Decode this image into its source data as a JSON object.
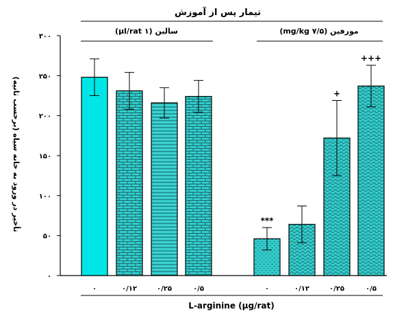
{
  "chart_data": {
    "type": "bar",
    "title": "تیمار پس از آموزش",
    "xlabel": "L-arginine (μg/rat)",
    "ylabel": "تأخیر در ورود به خانه سیاه (برحسب ثانیه)",
    "ylim": [
      0,
      300
    ],
    "yticks": [
      0,
      50,
      100,
      150,
      200,
      250,
      300
    ],
    "ytick_labels": [
      "۰",
      "۵۰",
      "۱۰۰",
      "۱۵۰",
      "۲۰۰",
      "۲۵۰",
      "۳۰۰"
    ],
    "categories": [
      "۰",
      "۰/۱۲",
      "۰/۲۵",
      "۰/۵",
      "۰",
      "۰/۱۲",
      "۰/۲۵",
      "۰/۵"
    ],
    "groups": [
      {
        "label": "سالین (۱ μl/rat)",
        "bar_indices": [
          0,
          1,
          2,
          3
        ]
      },
      {
        "label": "مورفین (۷/۵ mg/kg)",
        "bar_indices": [
          4,
          5,
          6,
          7
        ]
      }
    ],
    "values": [
      248,
      231,
      216,
      224,
      46,
      64,
      172,
      237
    ],
    "errors": [
      23,
      23,
      19,
      20,
      14,
      23,
      47,
      26
    ],
    "significance": [
      "",
      "",
      "",
      "",
      "***",
      "",
      "+",
      "+++"
    ],
    "colors": {
      "bar_fill": "#33cccc",
      "bar_fill_solid": "#00e5e5",
      "outline": "#000000"
    }
  }
}
